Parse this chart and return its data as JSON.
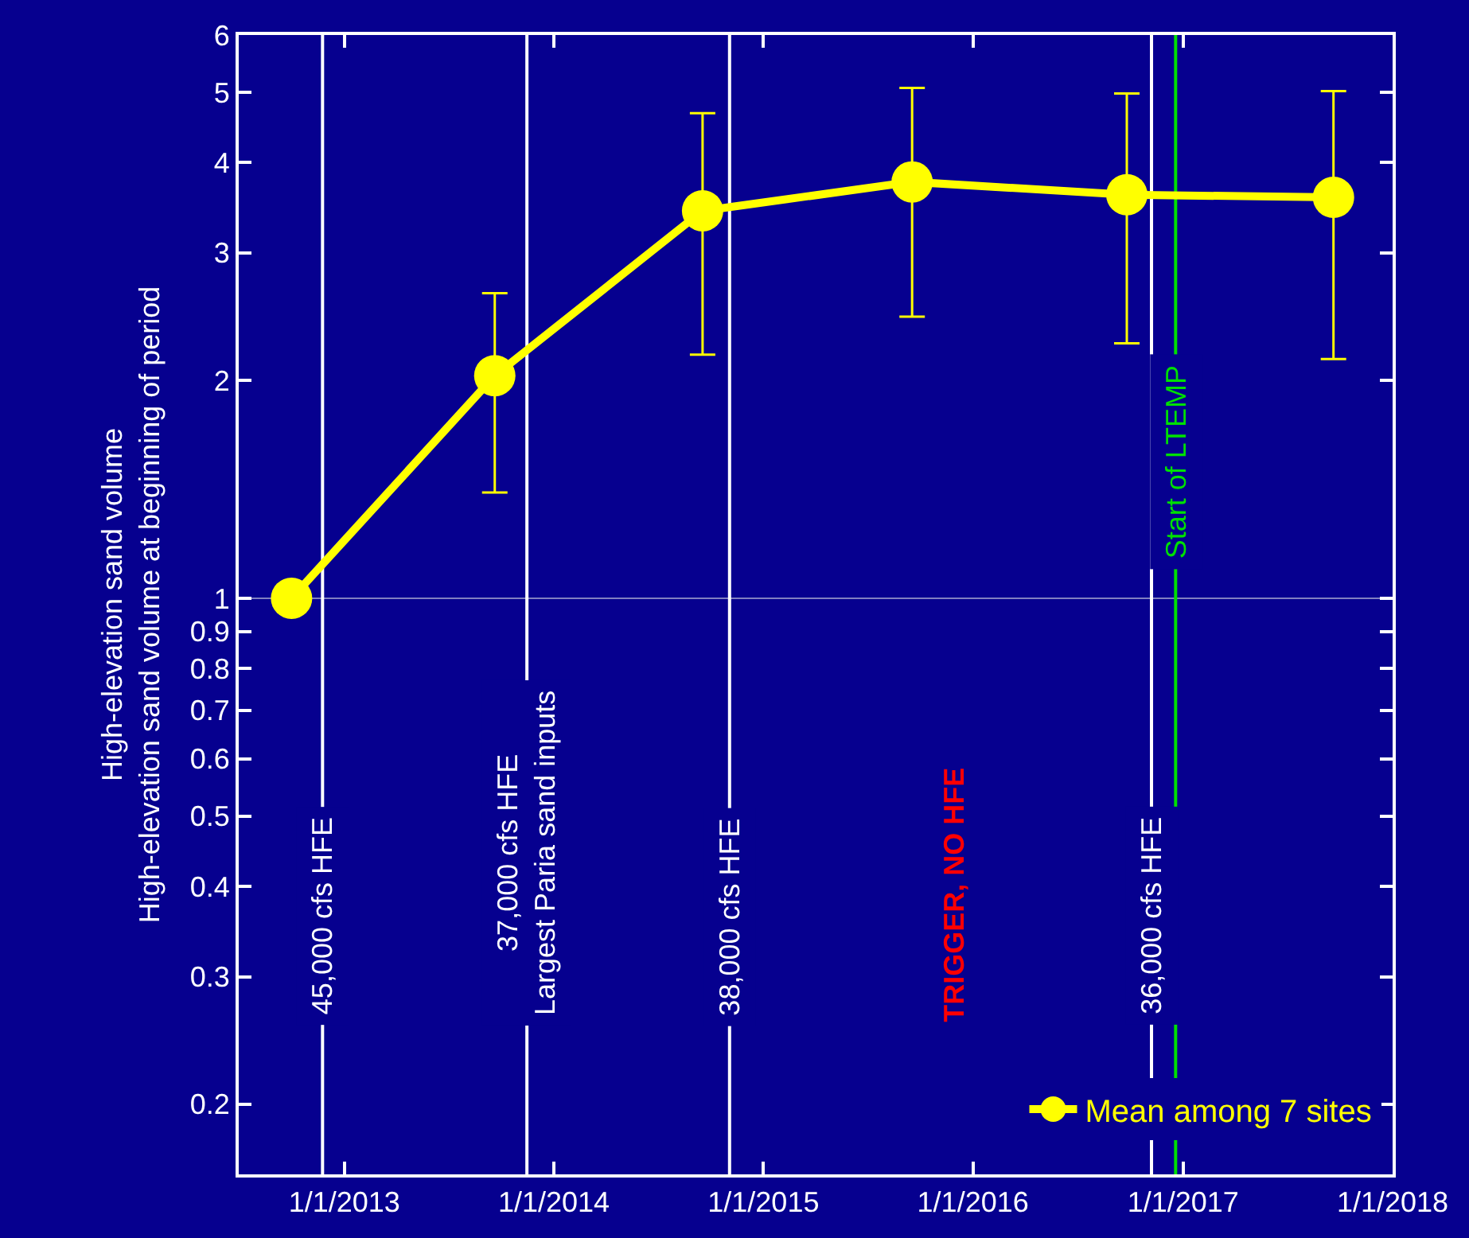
{
  "chart_data": {
    "type": "line",
    "ylabel": "High-elevation sand volume\nHigh-elevation sand volume at beginning of period",
    "x": [
      "2012-10-01",
      "2013-09-20",
      "2014-09-17",
      "2015-09-17",
      "2016-09-25",
      "2017-09-20"
    ],
    "series": [
      {
        "name": "Mean among 7 sites",
        "color": "#ffff00",
        "values": [
          1,
          2.03,
          3.43,
          3.76,
          3.61,
          3.58
        ],
        "errors": [
          null,
          [
            1.4,
            2.64
          ],
          [
            2.17,
            4.68
          ],
          [
            2.45,
            5.07
          ],
          [
            2.25,
            4.98
          ],
          [
            2.14,
            5.02
          ]
        ]
      }
    ],
    "marker": "circle",
    "line_style": "solid",
    "log": true,
    "grid": false,
    "legend": "bottom right",
    "xlim": [
      "2012-07-01",
      "2018-01-01"
    ],
    "xticks": [
      {
        "value": "2013-01-01",
        "label": "1/1/2013"
      },
      {
        "value": "2014-01-01",
        "label": "1/1/2014"
      },
      {
        "value": "2015-01-01",
        "label": "1/1/2015"
      },
      {
        "value": "2016-01-01",
        "label": "1/1/2016"
      },
      {
        "value": "2017-01-01",
        "label": "1/1/2017"
      },
      {
        "value": "2018-01-01",
        "label": "1/1/2018"
      }
    ],
    "ylim": [
      0.16,
      6
    ],
    "yticks": [
      0.2,
      0.3,
      0.4,
      0.5,
      0.6,
      0.7,
      0.8,
      0.9,
      1,
      2,
      3,
      4,
      5,
      6
    ],
    "ref_lines": [
      {
        "axis": "y",
        "value": 1,
        "color": "#8080c0"
      },
      {
        "axis": "x",
        "value": "2012-11-24",
        "label": "45,000 cfs HFE",
        "color": "#ffffff"
      },
      {
        "axis": "x",
        "value": "2013-11-15",
        "label": "37,000 cfs HFE\nLargest Paria sand inputs",
        "color": "#ffffff"
      },
      {
        "axis": "x",
        "value": "2014-11-03",
        "label": "38,000 cfs HFE",
        "color": "#ffffff"
      },
      {
        "axis": "x",
        "value": "2016-11-07",
        "label": "36,000 cfs HFE",
        "color": "#ffffff"
      },
      {
        "axis": "x",
        "value": "2016-12-19",
        "label": "Start of LTEMP",
        "color": "#00e000"
      }
    ],
    "annotations": [
      "TRIGGER, NO HFE"
    ]
  }
}
